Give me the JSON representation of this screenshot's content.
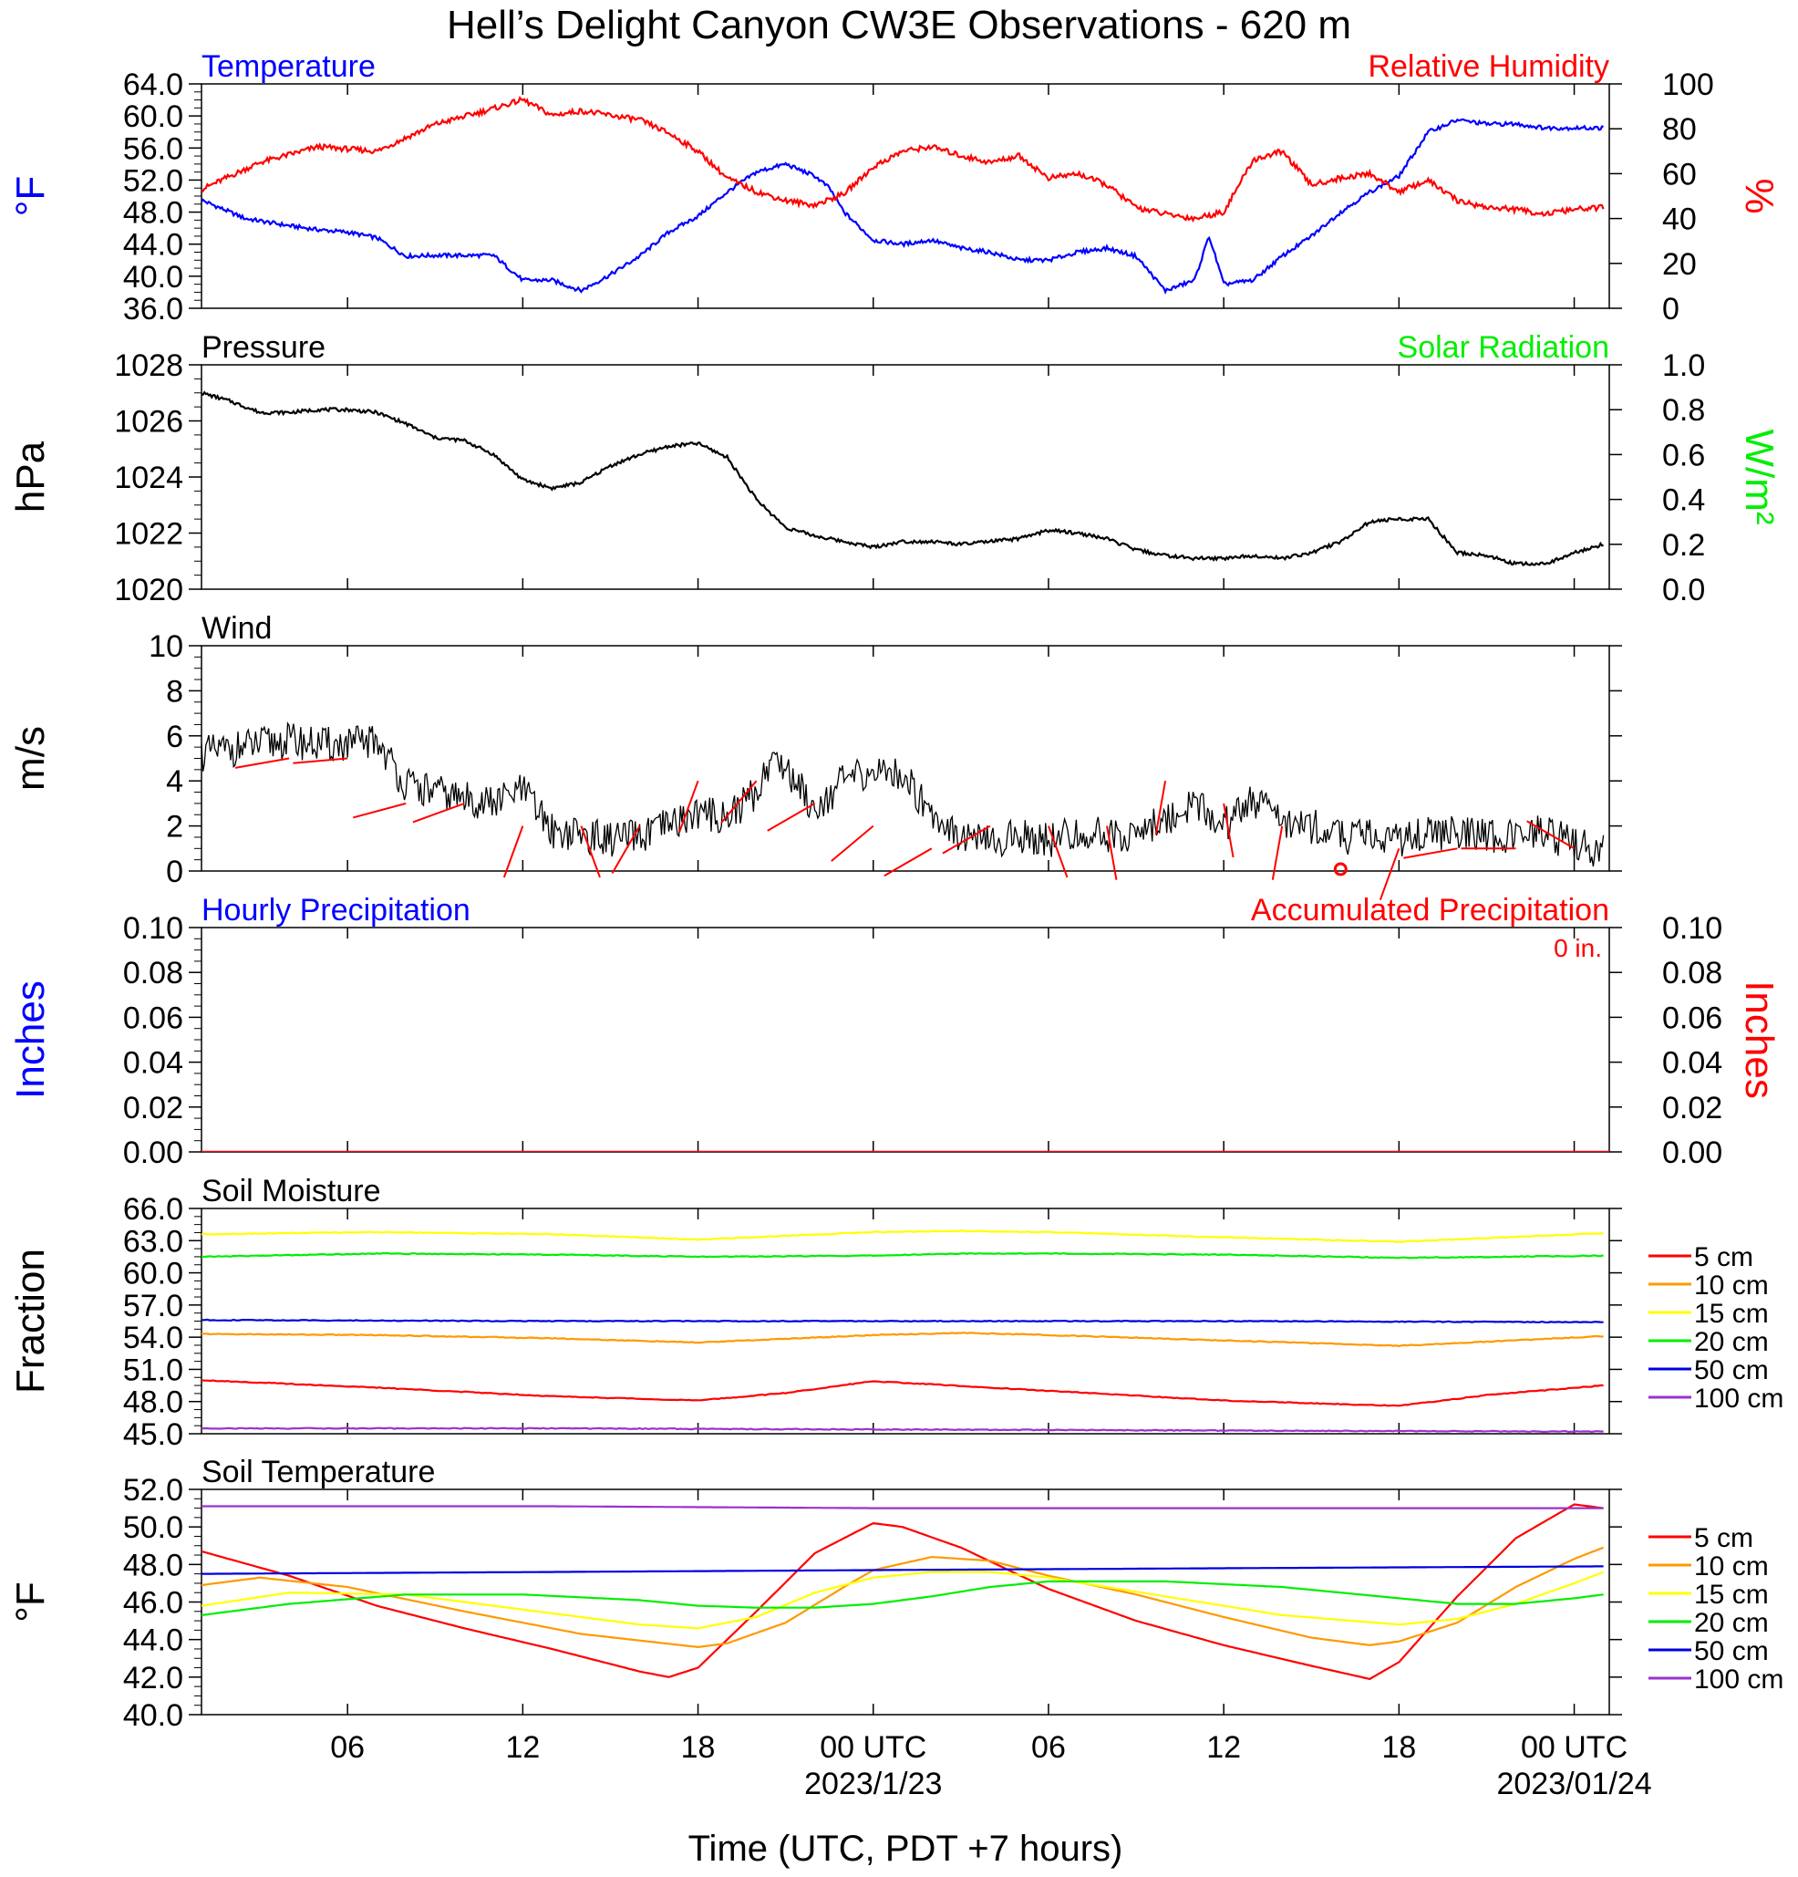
{
  "title": "Hell’s Delight Canyon CW3E Observations - 620 m",
  "colors": {
    "temperature": "#0000ff",
    "humidity": "#ff0000",
    "solar": "#00ee00",
    "pressure": "#000000",
    "wind_speed": "#000000",
    "wind_barb": "#ff0000",
    "hourly_precip": "#0000ff",
    "accum_precip": "#ff0000",
    "depth_5": "#ff0000",
    "depth_10": "#ff9900",
    "depth_15": "#ffff00",
    "depth_20": "#00ee00",
    "depth_50": "#0000dd",
    "depth_100": "#9933cc"
  },
  "x_axis": {
    "label": "Time (UTC, PDT +7 hours)",
    "range_hours": [
      -23,
      25.2
    ],
    "ticks": [
      {
        "h": -18,
        "label": "06"
      },
      {
        "h": -12,
        "label": "12"
      },
      {
        "h": -6,
        "label": "18"
      },
      {
        "h": 0,
        "label": "00 UTC",
        "date": "2023/1/23"
      },
      {
        "h": 6,
        "label": "06"
      },
      {
        "h": 12,
        "label": "12"
      },
      {
        "h": 18,
        "label": "18"
      },
      {
        "h": 24,
        "label": "00 UTC",
        "date": "2023/01/24"
      }
    ]
  },
  "chart_data": [
    {
      "panel": "temp_rh",
      "type": "line",
      "left_title": "Temperature",
      "right_title": "Relative Humidity",
      "ylabel": "°F",
      "y2label": "%",
      "ylim": [
        36,
        64
      ],
      "y2lim": [
        0,
        100
      ],
      "yticks": [
        "36.0",
        "40.0",
        "44.0",
        "48.0",
        "52.0",
        "56.0",
        "60.0",
        "64.0"
      ],
      "y2ticks": [
        "0",
        "20",
        "40",
        "60",
        "80",
        "100"
      ],
      "series": [
        {
          "name": "Temperature",
          "axis": "left",
          "color_key": "temperature",
          "x": [
            -23,
            -21.5,
            -20,
            -19,
            -18,
            -17,
            -16,
            -15,
            -13,
            -12,
            -11,
            -10,
            -9,
            -8,
            -7,
            -6,
            -5,
            -4,
            -3,
            -2,
            -1.5,
            -1,
            0,
            1,
            2,
            3,
            4,
            5,
            6,
            7,
            8,
            9,
            10,
            11,
            11.5,
            12,
            13,
            14,
            15,
            16,
            17,
            18,
            19,
            20,
            21,
            22,
            23,
            24,
            25
          ],
          "y": [
            49.5,
            47.2,
            46.3,
            45.8,
            45.5,
            44.8,
            42.5,
            42.6,
            42.6,
            39.5,
            39.5,
            38.2,
            40.2,
            42.5,
            45.5,
            47.5,
            50.5,
            53,
            54,
            52.5,
            51,
            48,
            44.5,
            44,
            44.5,
            43.5,
            43,
            42,
            42,
            43,
            43.5,
            42.5,
            38.2,
            39.5,
            45,
            39,
            39.5,
            42.5,
            45,
            48,
            50.5,
            52.5,
            58,
            59.5,
            59,
            59,
            58.5,
            58.5,
            58.5
          ]
        },
        {
          "name": "Relative Humidity",
          "axis": "right",
          "color_key": "humidity",
          "x": [
            -23,
            -21,
            -19,
            -17,
            -15,
            -13,
            -12,
            -11,
            -10,
            -9,
            -8,
            -7,
            -6,
            -5,
            -4,
            -3,
            -2,
            -1,
            0,
            1,
            2,
            3,
            4,
            5,
            6,
            7,
            8,
            9,
            10,
            11,
            12,
            13,
            14,
            15,
            16,
            17,
            18,
            19,
            20,
            21,
            22,
            23,
            24,
            25
          ],
          "y": [
            53,
            65,
            72,
            70,
            82,
            89,
            93,
            86,
            88,
            86,
            84,
            78,
            70,
            58,
            52,
            48,
            46,
            51,
            63,
            70,
            72,
            68,
            65,
            68,
            58,
            60,
            55,
            45,
            42,
            40,
            43,
            66,
            70,
            55,
            58,
            60,
            52,
            57,
            48,
            45,
            44,
            42,
            44,
            45
          ]
        }
      ]
    },
    {
      "panel": "pressure_solar",
      "type": "line",
      "left_title": "Pressure",
      "right_title": "Solar Radiation",
      "ylabel": "hPa",
      "y2label": "W/m2",
      "ylim": [
        1020,
        1028
      ],
      "y2lim": [
        0,
        1
      ],
      "yticks": [
        "1020",
        "1022",
        "1024",
        "1026",
        "1028"
      ],
      "y2ticks": [
        "0.0",
        "0.2",
        "0.4",
        "0.6",
        "0.8",
        "1.0"
      ],
      "series": [
        {
          "name": "Pressure",
          "axis": "left",
          "color_key": "pressure",
          "x": [
            -23,
            -22,
            -21,
            -20,
            -19,
            -18,
            -17,
            -16,
            -15,
            -14,
            -13,
            -12,
            -11,
            -10,
            -9,
            -8,
            -7,
            -6,
            -5,
            -4,
            -3,
            -2,
            -1,
            0,
            1,
            2,
            3,
            4,
            5,
            6,
            7,
            8,
            9,
            10,
            11,
            12,
            13,
            14,
            15,
            16,
            17,
            18,
            19,
            20,
            21,
            22,
            23,
            24,
            25
          ],
          "y": [
            1027.0,
            1026.7,
            1026.3,
            1026.3,
            1026.4,
            1026.4,
            1026.3,
            1025.9,
            1025.4,
            1025.3,
            1024.8,
            1023.9,
            1023.6,
            1023.8,
            1024.4,
            1024.8,
            1025.1,
            1025.2,
            1024.7,
            1023.2,
            1022.2,
            1021.9,
            1021.7,
            1021.5,
            1021.7,
            1021.7,
            1021.6,
            1021.7,
            1021.8,
            1022.1,
            1022.0,
            1021.8,
            1021.4,
            1021.2,
            1021.1,
            1021.1,
            1021.2,
            1021.1,
            1021.3,
            1021.7,
            1022.4,
            1022.5,
            1022.5,
            1021.3,
            1021.2,
            1020.9,
            1020.9,
            1021.3,
            1021.6
          ]
        }
      ]
    },
    {
      "panel": "wind",
      "type": "line",
      "left_title": "Wind",
      "ylabel": "m/s",
      "ylim": [
        0,
        10
      ],
      "yticks": [
        "0",
        "2",
        "4",
        "6",
        "8",
        "10"
      ],
      "series": [
        {
          "name": "Wind",
          "axis": "left",
          "color_key": "wind_speed",
          "x": [
            -23,
            -22,
            -21,
            -20,
            -19,
            -18,
            -17,
            -16,
            -15,
            -14,
            -13,
            -12,
            -11,
            -10,
            -9,
            -8,
            -7,
            -6,
            -5,
            -4,
            -3.5,
            -3,
            -2,
            -1,
            0,
            1,
            2,
            3,
            4,
            5,
            6,
            7,
            8,
            9,
            10,
            11,
            12,
            13,
            14,
            15,
            16,
            17,
            18,
            19,
            20,
            21,
            22,
            23,
            24,
            25
          ],
          "y": [
            5.2,
            5.4,
            5.6,
            5.8,
            5.6,
            5.6,
            5.8,
            3.8,
            3.5,
            3.2,
            3.0,
            3.6,
            1.8,
            1.6,
            1.4,
            1.5,
            2.0,
            2.6,
            2.4,
            3.5,
            5.0,
            4.6,
            2.8,
            4.0,
            4.4,
            4.3,
            2.6,
            1.6,
            1.2,
            1.6,
            1.4,
            1.6,
            1.6,
            1.6,
            2.3,
            3.0,
            2.0,
            3.2,
            2.2,
            2.0,
            1.5,
            1.6,
            1.4,
            1.7,
            1.7,
            1.5,
            1.6,
            1.7,
            1.2,
            0.8
          ]
        }
      ]
    },
    {
      "panel": "precip",
      "type": "line",
      "left_title": "Hourly Precipitation",
      "right_title": "Accumulated Precipitation",
      "annotation": "0 in.",
      "ylabel": "Inches",
      "y2label": "Inches",
      "ylim": [
        0,
        0.1
      ],
      "y2lim": [
        0,
        0.1
      ],
      "yticks": [
        "0.00",
        "0.02",
        "0.04",
        "0.06",
        "0.08",
        "0.10"
      ],
      "y2ticks": [
        "0.00",
        "0.02",
        "0.04",
        "0.06",
        "0.08",
        "0.10"
      ],
      "series": [
        {
          "name": "Hourly Precipitation",
          "axis": "left",
          "color_key": "hourly_precip",
          "x": [
            -23,
            25.2
          ],
          "y": [
            0,
            0
          ]
        },
        {
          "name": "Accumulated Precipitation",
          "axis": "right",
          "color_key": "accum_precip",
          "x": [
            -23,
            25.2
          ],
          "y": [
            0,
            0
          ]
        }
      ]
    },
    {
      "panel": "soil_moisture",
      "type": "line",
      "left_title": "Soil Moisture",
      "ylabel": "Fraction",
      "ylim": [
        45,
        66
      ],
      "yticks": [
        "45.0",
        "48.0",
        "51.0",
        "54.0",
        "57.0",
        "60.0",
        "63.0",
        "66.0"
      ],
      "legend": [
        "5 cm",
        "10 cm",
        "15 cm",
        "20 cm",
        "50 cm",
        "100 cm"
      ],
      "series": [
        {
          "name": "5 cm",
          "color_key": "depth_5",
          "x": [
            -23,
            -17,
            -11,
            -6,
            -3,
            0,
            6,
            12,
            18,
            21,
            25
          ],
          "y": [
            50.0,
            49.3,
            48.5,
            48.1,
            48.8,
            49.9,
            49.0,
            48.1,
            47.6,
            48.6,
            49.5
          ]
        },
        {
          "name": "10 cm",
          "color_key": "depth_10",
          "x": [
            -23,
            -17,
            -11,
            -6,
            0,
            3,
            6,
            12,
            18,
            25
          ],
          "y": [
            54.3,
            54.2,
            53.9,
            53.5,
            54.2,
            54.4,
            54.2,
            53.7,
            53.2,
            54.1
          ]
        },
        {
          "name": "15 cm",
          "color_key": "depth_15",
          "x": [
            -23,
            -17,
            -11,
            -6,
            0,
            3,
            6,
            12,
            18,
            25
          ],
          "y": [
            63.6,
            63.8,
            63.6,
            63.1,
            63.8,
            63.9,
            63.8,
            63.3,
            62.9,
            63.7
          ]
        },
        {
          "name": "20 cm",
          "color_key": "depth_20",
          "x": [
            -23,
            -17,
            -11,
            -6,
            0,
            3,
            6,
            12,
            18,
            25
          ],
          "y": [
            61.5,
            61.8,
            61.7,
            61.5,
            61.6,
            61.8,
            61.8,
            61.7,
            61.4,
            61.6
          ]
        },
        {
          "name": "50 cm",
          "color_key": "depth_50",
          "x": [
            -23,
            -11,
            0,
            12,
            25
          ],
          "y": [
            55.6,
            55.5,
            55.5,
            55.5,
            55.4
          ]
        },
        {
          "name": "100 cm",
          "color_key": "depth_100",
          "x": [
            -23,
            -11,
            0,
            12,
            25
          ],
          "y": [
            45.5,
            45.5,
            45.4,
            45.3,
            45.2
          ]
        }
      ]
    },
    {
      "panel": "soil_temperature",
      "type": "line",
      "left_title": "Soil Temperature",
      "ylabel": "°F",
      "ylim": [
        40,
        52
      ],
      "yticks": [
        "40.0",
        "42.0",
        "44.0",
        "46.0",
        "48.0",
        "50.0",
        "52.0"
      ],
      "legend": [
        "5 cm",
        "10 cm",
        "15 cm",
        "20 cm",
        "50 cm",
        "100 cm"
      ],
      "series": [
        {
          "name": "5 cm",
          "color_key": "depth_5",
          "x": [
            -23,
            -20,
            -17,
            -14,
            -11,
            -8,
            -7,
            -6,
            -4,
            -2,
            0,
            1,
            3,
            6,
            9,
            12,
            15,
            17,
            18,
            20,
            22,
            24,
            25
          ],
          "y": [
            48.7,
            47.4,
            45.8,
            44.6,
            43.5,
            42.3,
            42.0,
            42.5,
            45.5,
            48.6,
            50.2,
            50.0,
            48.9,
            46.7,
            45.0,
            43.7,
            42.6,
            41.9,
            42.8,
            46.3,
            49.4,
            51.2,
            51.0
          ]
        },
        {
          "name": "10 cm",
          "color_key": "depth_10",
          "x": [
            -23,
            -21,
            -18,
            -14,
            -10,
            -6,
            -5,
            -3,
            -1,
            0,
            2,
            4,
            6,
            9,
            12,
            15,
            17,
            18,
            20,
            22,
            24,
            25
          ],
          "y": [
            46.9,
            47.3,
            46.8,
            45.5,
            44.3,
            43.6,
            43.8,
            44.9,
            46.8,
            47.7,
            48.4,
            48.2,
            47.4,
            46.4,
            45.2,
            44.1,
            43.7,
            43.9,
            44.9,
            46.8,
            48.3,
            48.9
          ]
        },
        {
          "name": "15 cm",
          "color_key": "depth_15",
          "x": [
            -23,
            -20,
            -16,
            -12,
            -8,
            -6,
            -4,
            -2,
            0,
            2,
            4,
            6,
            10,
            14,
            18,
            20,
            22,
            24,
            25
          ],
          "y": [
            45.8,
            46.5,
            46.4,
            45.6,
            44.8,
            44.6,
            45.2,
            46.5,
            47.3,
            47.6,
            47.6,
            47.3,
            46.3,
            45.3,
            44.8,
            45.1,
            45.9,
            47.0,
            47.6
          ]
        },
        {
          "name": "20 cm",
          "color_key": "depth_20",
          "x": [
            -23,
            -20,
            -16,
            -12,
            -8,
            -6,
            -4,
            -2,
            0,
            2,
            4,
            6,
            10,
            14,
            18,
            20,
            22,
            24,
            25
          ],
          "y": [
            45.3,
            45.9,
            46.4,
            46.4,
            46.1,
            45.8,
            45.7,
            45.7,
            45.9,
            46.3,
            46.8,
            47.1,
            47.1,
            46.8,
            46.2,
            45.9,
            45.9,
            46.2,
            46.4
          ]
        },
        {
          "name": "50 cm",
          "color_key": "depth_50",
          "x": [
            -23,
            -11,
            0,
            12,
            25
          ],
          "y": [
            47.5,
            47.6,
            47.7,
            47.8,
            47.9
          ]
        },
        {
          "name": "100 cm",
          "color_key": "depth_100",
          "x": [
            -23,
            -11,
            0,
            12,
            25
          ],
          "y": [
            51.1,
            51.1,
            51.0,
            51.0,
            51.0
          ]
        }
      ]
    }
  ],
  "wind_barbs": [
    {
      "h": -20,
      "speed": 5,
      "dir": 80
    },
    {
      "h": -18,
      "speed": 5,
      "dir": 85
    },
    {
      "h": -16,
      "speed": 3,
      "dir": 75
    },
    {
      "h": -14,
      "speed": 3,
      "dir": 70
    },
    {
      "h": -12,
      "speed": 2,
      "dir": 20
    },
    {
      "h": -10,
      "speed": 2,
      "dir": 340
    },
    {
      "h": -8,
      "speed": 2,
      "dir": 30
    },
    {
      "h": -6,
      "speed": 4,
      "dir": 20
    },
    {
      "h": -4,
      "speed": 4,
      "dir": 40
    },
    {
      "h": -2,
      "speed": 3,
      "dir": 60
    },
    {
      "h": 0,
      "speed": 2,
      "dir": 50
    },
    {
      "h": 2,
      "speed": 1,
      "dir": 60
    },
    {
      "h": 4,
      "speed": 2,
      "dir": 60
    },
    {
      "h": 6,
      "speed": 2,
      "dir": 340
    },
    {
      "h": 8,
      "speed": 2,
      "dir": 350
    },
    {
      "h": 10,
      "speed": 4,
      "dir": 10
    },
    {
      "h": 12,
      "speed": 3,
      "dir": 350
    },
    {
      "h": 14,
      "speed": 2,
      "dir": 10
    },
    {
      "h": 16,
      "speed": 0,
      "dir": 0
    },
    {
      "h": 18,
      "speed": 1,
      "dir": 20
    },
    {
      "h": 20,
      "speed": 1,
      "dir": 80
    },
    {
      "h": 22,
      "speed": 1,
      "dir": 90
    },
    {
      "h": 24,
      "speed": 1,
      "dir": 120
    }
  ]
}
